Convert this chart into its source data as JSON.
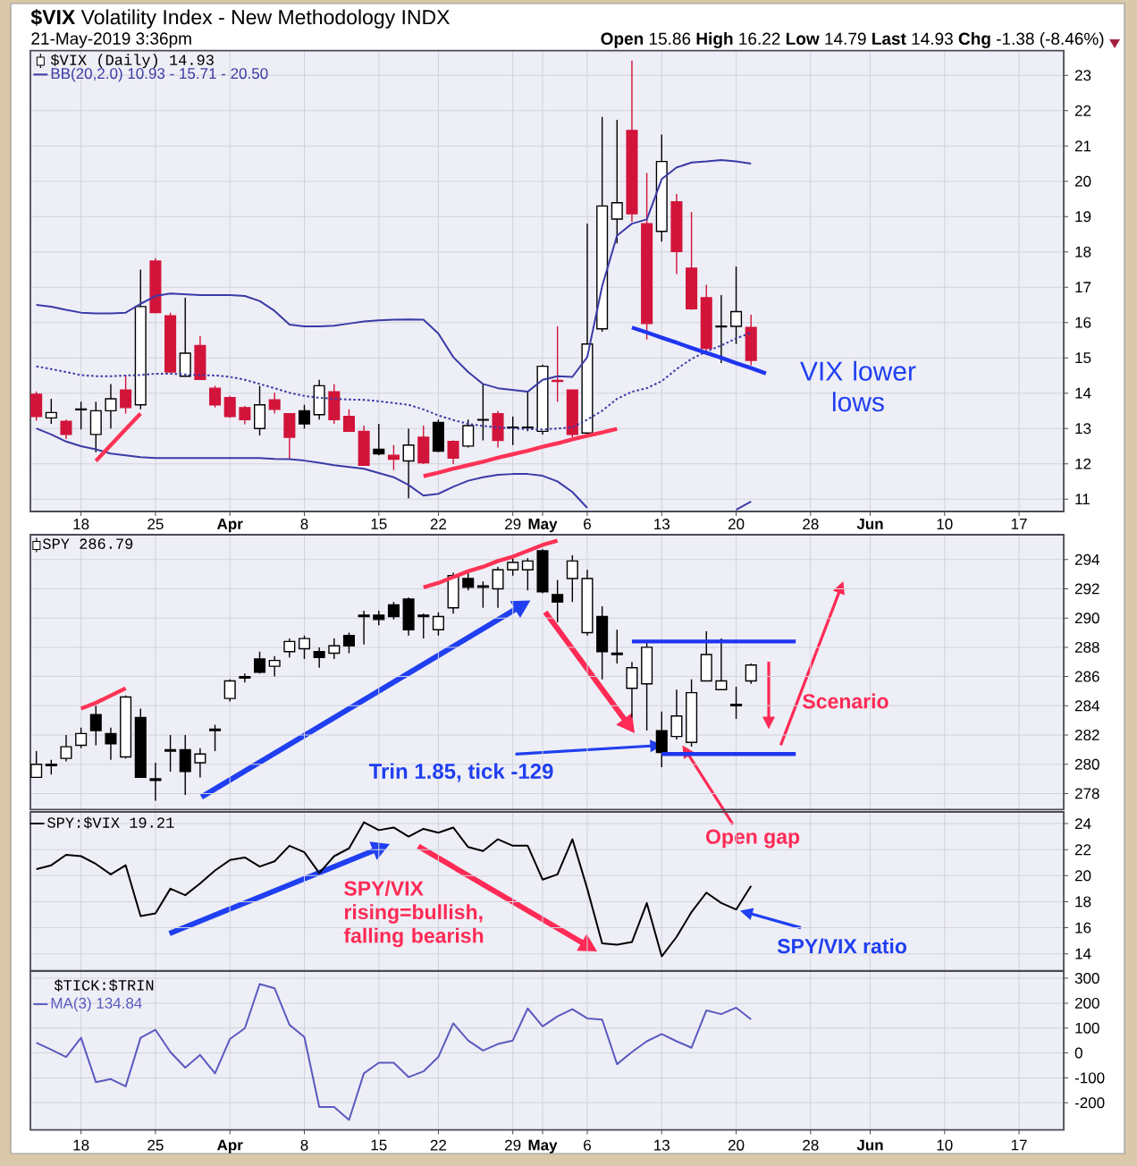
{
  "chart_data": [
    {
      "type": "candlestick",
      "title": "**$VIX** Volatility Index - New Methodology INDX",
      "subtitle": "21-May-2019 3:36pm",
      "annotations": [
        "**Open** 15.86 **High** 16.22 **Low** 14.79 **Last** 14.93 **Chg** -1.38 (-8.46%)",
        "VIX lower lows"
      ],
      "categories": [
        null,
        null,
        null,
        "18",
        null,
        null,
        null,
        null,
        "25",
        null,
        null,
        null,
        null,
        "**Apr**",
        null,
        null,
        null,
        null,
        "8",
        null,
        null,
        null,
        null,
        "15",
        null,
        null,
        null,
        "22",
        null,
        null,
        null,
        null,
        "29",
        null,
        "**May**",
        null,
        null,
        "6",
        null,
        null,
        null,
        null,
        "13",
        null,
        null,
        null,
        null,
        "20",
        null,
        null,
        null,
        null,
        "28",
        null,
        null,
        null,
        "**Jun**",
        null,
        null,
        null,
        null,
        "10",
        null,
        null,
        null,
        null,
        "17",
        null,
        null,
        null
      ],
      "series": [
        {
          "name": "$VIX (Daily) 14.93",
          "type": "candlestick",
          "colors": [
            "#d2143a",
            "#000000",
            "#d2143a",
            "#000000",
            "#000000",
            "#000000",
            "#d2143a",
            "#000000",
            "#d2143a",
            "#d2143a",
            "#000000",
            "#d2143a",
            "#d2143a",
            "#d2143a",
            "#d2143a",
            "#000000",
            "#d2143a",
            "#d2143a",
            "#000000",
            "#000000",
            "#d2143a",
            "#d2143a",
            "#d2143a",
            "#000000",
            "#d2143a",
            "#000000",
            "#d2143a",
            "#000000",
            "#d2143a",
            "#000000",
            "#000000",
            "#d2143a",
            "#000000",
            "#000000",
            "#000000",
            "#d2143a",
            "#d2143a",
            "#000000",
            "#000000",
            "#000000",
            "#d2143a",
            "#d2143a",
            "#000000",
            "#d2143a",
            "#d2143a",
            "#d2143a",
            "#000000",
            "#000000",
            "#d2143a",
            null,
            null,
            null,
            null,
            null,
            null,
            null,
            null,
            null,
            null,
            null,
            null,
            null,
            null,
            null,
            null,
            null,
            null,
            null,
            null,
            null
          ],
          "ohlc": [
            [
              13.97,
              14.05,
              13.22,
              13.34
            ],
            [
              13.3,
              13.84,
              13.13,
              13.45
            ],
            [
              13.2,
              13.25,
              12.7,
              12.83
            ],
            [
              13.53,
              13.76,
              12.97,
              13.55
            ],
            [
              12.83,
              13.76,
              12.33,
              13.5
            ],
            [
              13.5,
              14.26,
              13.0,
              13.84
            ],
            [
              14.09,
              14.51,
              13.42,
              13.59
            ],
            [
              13.67,
              17.5,
              13.54,
              16.45
            ],
            [
              17.74,
              17.82,
              16.28,
              16.28
            ],
            [
              16.19,
              16.28,
              14.6,
              14.6
            ],
            [
              14.48,
              16.7,
              14.48,
              15.13
            ],
            [
              15.35,
              15.61,
              14.39,
              14.39
            ],
            [
              14.14,
              14.21,
              13.59,
              13.67
            ],
            [
              13.87,
              13.92,
              13.3,
              13.34
            ],
            [
              13.59,
              13.64,
              13.12,
              13.25
            ],
            [
              13.0,
              14.21,
              12.8,
              13.67
            ],
            [
              13.81,
              14.01,
              13.42,
              13.54
            ],
            [
              13.42,
              13.42,
              12.13,
              12.75
            ],
            [
              13.5,
              13.67,
              13.0,
              13.13
            ],
            [
              13.39,
              14.38,
              13.25,
              14.21
            ],
            [
              14.04,
              14.26,
              13.13,
              13.25
            ],
            [
              13.34,
              13.54,
              12.92,
              12.92
            ],
            [
              12.92,
              13.08,
              11.96,
              11.96
            ],
            [
              12.41,
              13.13,
              12.24,
              12.28
            ],
            [
              12.24,
              12.53,
              11.82,
              12.13
            ],
            [
              12.08,
              13.0,
              11.02,
              12.53
            ],
            [
              12.75,
              13.08,
              11.99,
              12.03
            ],
            [
              13.17,
              13.25,
              12.33,
              12.36
            ],
            [
              12.63,
              12.66,
              11.99,
              12.16
            ],
            [
              12.5,
              13.25,
              12.46,
              13.08
            ],
            [
              13.24,
              14.26,
              12.66,
              13.25
            ],
            [
              13.42,
              13.5,
              12.46,
              12.66
            ],
            [
              13.02,
              13.34,
              12.53,
              13.04
            ],
            [
              13.02,
              14.04,
              12.92,
              13.04
            ],
            [
              12.92,
              14.81,
              12.83,
              14.76
            ],
            [
              14.36,
              15.89,
              13.76,
              14.33
            ],
            [
              14.09,
              14.09,
              12.75,
              12.83
            ],
            [
              12.87,
              18.8,
              12.8,
              15.39
            ],
            [
              15.82,
              21.82,
              15.74,
              19.3
            ],
            [
              18.93,
              21.74,
              18.24,
              19.39
            ],
            [
              21.44,
              23.42,
              18.85,
              19.08
            ],
            [
              18.8,
              20.23,
              15.52,
              15.97
            ],
            [
              18.58,
              21.32,
              18.29,
              20.56
            ],
            [
              19.42,
              19.64,
              17.37,
              18.01
            ],
            [
              17.54,
              19.13,
              16.36,
              16.39
            ],
            [
              16.7,
              17.07,
              15.18,
              15.27
            ],
            [
              15.88,
              16.78,
              14.85,
              15.9
            ],
            [
              15.89,
              17.59,
              15.39,
              16.31
            ],
            [
              15.86,
              16.22,
              14.79,
              14.93
            ],
            null,
            null,
            null,
            null,
            null,
            null,
            null,
            null,
            null,
            null,
            null,
            null,
            null,
            null,
            null,
            null,
            null,
            null,
            null,
            null,
            null
          ]
        },
        {
          "name": "BB(20,2.0) 10.93 - 15.71 - 20.50",
          "type": "line",
          "color": "#3a3aa8",
          "values": [
            16.5,
            16.45,
            16.36,
            16.28,
            16.26,
            16.26,
            16.28,
            16.53,
            16.75,
            16.82,
            16.8,
            16.78,
            16.78,
            16.78,
            16.75,
            16.61,
            16.33,
            15.94,
            15.89,
            15.89,
            15.91,
            15.97,
            16.03,
            16.06,
            16.08,
            16.09,
            16.08,
            15.69,
            15.02,
            14.6,
            14.26,
            14.14,
            14.09,
            14.04,
            14.38,
            14.48,
            14.46,
            15.02,
            17.03,
            18.46,
            18.8,
            18.92,
            20.06,
            20.39,
            20.53,
            20.56,
            20.6,
            20.56,
            20.5,
            null,
            null,
            null,
            null,
            null,
            null,
            null,
            null,
            null,
            null,
            null,
            null,
            null,
            null,
            null,
            null,
            null,
            null,
            null,
            null,
            null
          ]
        },
        {
          "type": "line",
          "color": "#3a3aa8",
          "line_style": "dotted",
          "values": [
            14.76,
            14.68,
            14.6,
            14.51,
            14.48,
            14.48,
            14.5,
            14.51,
            14.55,
            14.55,
            14.53,
            14.51,
            14.5,
            14.46,
            14.38,
            14.26,
            14.14,
            14.01,
            13.92,
            13.87,
            13.84,
            13.82,
            13.81,
            13.77,
            13.72,
            13.67,
            13.54,
            13.37,
            13.24,
            13.13,
            13.07,
            13.03,
            13.0,
            12.98,
            12.97,
            13.0,
            13.03,
            13.25,
            13.5,
            13.84,
            14.04,
            14.14,
            14.34,
            14.68,
            14.97,
            15.18,
            15.35,
            15.55,
            15.71,
            null,
            null,
            null,
            null,
            null,
            null,
            null,
            null,
            null,
            null,
            null,
            null,
            null,
            null,
            null,
            null,
            null,
            null,
            null,
            null,
            null
          ]
        },
        {
          "type": "line",
          "color": "#3a3aa8",
          "values": [
            13.0,
            12.83,
            12.63,
            12.5,
            12.41,
            12.29,
            12.24,
            12.19,
            12.16,
            12.16,
            12.16,
            12.16,
            12.16,
            12.16,
            12.16,
            12.16,
            12.14,
            12.13,
            12.09,
            12.03,
            11.96,
            11.91,
            11.86,
            11.74,
            11.62,
            11.4,
            11.1,
            11.15,
            11.35,
            11.52,
            11.62,
            11.69,
            11.71,
            11.71,
            11.66,
            11.5,
            11.2,
            10.75,
            null,
            null,
            null,
            null,
            null,
            null,
            null,
            null,
            null,
            10.7,
            10.93,
            null,
            null,
            null,
            null,
            null,
            null,
            null,
            null,
            null,
            null,
            null,
            null,
            null,
            null,
            null,
            null,
            null,
            null,
            null,
            null,
            null
          ]
        },
        {
          "type": "line",
          "color": "#ff3355",
          "values": [
            null,
            null,
            null,
            null,
            12.08,
            12.53,
            12.98,
            13.42,
            null,
            null,
            null,
            null,
            null,
            null,
            null,
            null,
            null,
            null,
            null,
            null,
            null,
            null,
            null,
            null,
            null,
            null,
            null,
            null,
            null,
            null,
            null,
            null,
            null,
            null,
            null,
            null,
            null,
            null,
            null,
            null,
            null,
            null,
            null,
            null,
            null,
            null,
            null,
            null,
            null,
            null,
            null,
            null,
            null,
            null,
            null,
            null,
            null,
            null,
            null,
            null,
            null,
            null,
            null,
            null,
            null,
            null,
            null,
            null,
            null,
            null
          ]
        },
        {
          "type": "line",
          "color": "#ff3355",
          "values": [
            null,
            null,
            null,
            null,
            null,
            null,
            null,
            null,
            null,
            null,
            null,
            null,
            null,
            null,
            null,
            null,
            null,
            null,
            null,
            null,
            null,
            null,
            null,
            null,
            null,
            null,
            11.65,
            11.75,
            11.86,
            11.96,
            12.06,
            12.17,
            12.27,
            12.37,
            12.48,
            12.58,
            12.69,
            12.79,
            12.89,
            12.99,
            null,
            null,
            null,
            null,
            null,
            null,
            null,
            null,
            null,
            null,
            null,
            null,
            null,
            null,
            null,
            null,
            null,
            null,
            null,
            null,
            null,
            null,
            null,
            null,
            null,
            null,
            null,
            null,
            null,
            null
          ]
        },
        {
          "type": "line",
          "color": "#1f35f0",
          "values": [
            null,
            null,
            null,
            null,
            null,
            null,
            null,
            null,
            null,
            null,
            null,
            null,
            null,
            null,
            null,
            null,
            null,
            null,
            null,
            null,
            null,
            null,
            null,
            null,
            null,
            null,
            null,
            null,
            null,
            null,
            null,
            null,
            null,
            null,
            null,
            null,
            null,
            null,
            null,
            null,
            15.86,
            15.72,
            15.57,
            15.43,
            15.28,
            15.14,
            15.0,
            14.85,
            14.71,
            14.56,
            null,
            null,
            null,
            null,
            null,
            null,
            null,
            null,
            null,
            null,
            null,
            null,
            null,
            null,
            null,
            null,
            null,
            null,
            null,
            null
          ]
        }
      ],
      "ylim": [
        10.65,
        23.7
      ],
      "yticks": [
        11,
        12,
        13,
        14,
        15,
        16,
        17,
        18,
        19,
        20,
        21,
        22,
        23
      ],
      "grid": true,
      "legend": "top left"
    },
    {
      "type": "candlestick",
      "annotations": [
        "Trin 1.85, tick -129",
        "Scenario",
        "Open gap"
      ],
      "categories": [
        null,
        null,
        null,
        null,
        null,
        null,
        null,
        null,
        null,
        null,
        null,
        null,
        null,
        null,
        null,
        null,
        null,
        null,
        null,
        null,
        null,
        null,
        null,
        null,
        null,
        null,
        null,
        null,
        null,
        null,
        null,
        null,
        null,
        null,
        null,
        null,
        null,
        null,
        null,
        null,
        null,
        null,
        null,
        null,
        null,
        null,
        null,
        null,
        null,
        null,
        null,
        null,
        null,
        null,
        null,
        null,
        null,
        null,
        null,
        null,
        null,
        null,
        null,
        null,
        null,
        null,
        null,
        null,
        null,
        null
      ],
      "series": [
        {
          "name": "SPY 286.79",
          "type": "candlestick",
          "color": "#000000",
          "ohlc": [
            [
              279.1,
              280.9,
              279.1,
              280.0
            ],
            [
              280.0,
              280.3,
              279.3,
              279.9
            ],
            [
              280.4,
              282.0,
              280.2,
              281.2
            ],
            [
              281.3,
              282.5,
              281.1,
              282.1
            ],
            [
              283.4,
              284.0,
              281.3,
              282.3
            ],
            [
              282.1,
              282.5,
              280.3,
              281.4
            ],
            [
              280.5,
              284.7,
              280.4,
              284.6
            ],
            [
              283.2,
              283.8,
              279.1,
              279.1
            ],
            [
              279.0,
              280.1,
              277.5,
              278.9
            ],
            [
              281.0,
              282.0,
              279.5,
              280.9
            ],
            [
              281.0,
              282.0,
              277.9,
              279.5
            ],
            [
              280.1,
              281.1,
              279.1,
              280.7
            ],
            [
              282.4,
              282.7,
              280.9,
              282.3
            ],
            [
              284.5,
              285.8,
              284.3,
              285.7
            ],
            [
              286.0,
              286.2,
              285.6,
              285.9
            ],
            [
              287.2,
              287.7,
              286.2,
              286.3
            ],
            [
              286.7,
              287.4,
              286.0,
              287.1
            ],
            [
              287.7,
              288.6,
              287.3,
              288.4
            ],
            [
              287.9,
              288.8,
              287.2,
              288.6
            ],
            [
              287.7,
              288.0,
              286.6,
              287.3
            ],
            [
              287.6,
              288.6,
              287.2,
              288.1
            ],
            [
              288.8,
              289.0,
              287.6,
              288.1
            ],
            [
              290.2,
              290.5,
              288.2,
              290.1
            ],
            [
              290.2,
              290.5,
              289.5,
              289.9
            ],
            [
              290.9,
              291.1,
              289.9,
              290.1
            ],
            [
              291.3,
              291.4,
              288.8,
              289.2
            ],
            [
              290.2,
              290.3,
              288.6,
              290.1
            ],
            [
              289.2,
              290.4,
              288.8,
              290.1
            ],
            [
              290.7,
              293.1,
              290.3,
              292.9
            ],
            [
              292.7,
              293.1,
              291.9,
              292.1
            ],
            [
              292.2,
              292.5,
              290.7,
              292.1
            ],
            [
              292.0,
              293.5,
              290.7,
              293.3
            ],
            [
              293.3,
              294.1,
              292.9,
              293.8
            ],
            [
              293.3,
              294.1,
              291.9,
              293.9
            ],
            [
              294.6,
              294.7,
              291.7,
              291.8
            ],
            [
              291.6,
              292.6,
              289.7,
              291.1
            ],
            [
              292.7,
              294.3,
              291.1,
              293.9
            ],
            [
              289.0,
              293.3,
              288.8,
              292.7
            ],
            [
              290.1,
              290.8,
              285.8,
              287.7
            ],
            [
              287.6,
              289.2,
              286.9,
              287.5
            ],
            [
              285.2,
              287.0,
              283.2,
              286.6
            ],
            [
              285.5,
              288.4,
              282.3,
              288.0
            ],
            [
              282.3,
              283.6,
              279.8,
              280.8
            ],
            [
              281.9,
              285.1,
              281.7,
              283.3
            ],
            [
              281.5,
              285.8,
              281.2,
              284.9
            ],
            [
              285.7,
              289.1,
              285.7,
              287.5
            ],
            [
              285.1,
              288.6,
              285.1,
              285.7
            ],
            [
              284.1,
              285.3,
              283.1,
              284.0
            ],
            [
              285.7,
              286.9,
              285.5,
              286.79
            ],
            null,
            null,
            null,
            null,
            null,
            null,
            null,
            null,
            null,
            null,
            null,
            null,
            null,
            null,
            null,
            null,
            null,
            null,
            null,
            null,
            null
          ]
        },
        {
          "type": "line",
          "color": "#ff3355",
          "values": [
            null,
            null,
            null,
            283.8,
            284.2,
            284.7,
            285.2,
            null,
            null,
            null,
            null,
            null,
            null,
            null,
            null,
            null,
            null,
            null,
            null,
            null,
            null,
            null,
            null,
            null,
            null,
            null,
            null,
            null,
            null,
            null,
            null,
            null,
            null,
            null,
            null,
            null,
            null,
            null,
            null,
            null,
            null,
            null,
            null,
            null,
            null,
            null,
            null,
            null,
            null,
            null,
            null,
            null,
            null,
            null,
            null,
            null,
            null,
            null,
            null,
            null,
            null,
            null,
            null,
            null,
            null,
            null,
            null,
            null,
            null,
            null
          ]
        },
        {
          "type": "line",
          "color": "#ff3355",
          "values": [
            null,
            null,
            null,
            null,
            null,
            null,
            null,
            null,
            null,
            null,
            null,
            null,
            null,
            null,
            null,
            null,
            null,
            null,
            null,
            null,
            null,
            null,
            null,
            null,
            null,
            null,
            292.1,
            292.4,
            292.8,
            293.2,
            293.5,
            293.9,
            294.2,
            294.6,
            295.0,
            295.3,
            null,
            null,
            null,
            null,
            null,
            null,
            null,
            null,
            null,
            null,
            null,
            null,
            null,
            null,
            null,
            null,
            null,
            null,
            null,
            null,
            null,
            null,
            null,
            null,
            null,
            null,
            null,
            null,
            null,
            null,
            null,
            null,
            null,
            null
          ]
        },
        {
          "type": "line",
          "color": "#1f35f0",
          "values": [
            null,
            null,
            null,
            null,
            null,
            null,
            null,
            null,
            null,
            null,
            null,
            null,
            null,
            null,
            null,
            null,
            null,
            null,
            null,
            null,
            null,
            null,
            null,
            null,
            null,
            null,
            null,
            null,
            null,
            null,
            null,
            null,
            null,
            null,
            null,
            null,
            null,
            null,
            null,
            null,
            288.4,
            288.4,
            288.4,
            288.4,
            288.4,
            288.4,
            288.4,
            288.4,
            288.4,
            288.4,
            288.4,
            288.4,
            null,
            null,
            null,
            null,
            null,
            null,
            null,
            null,
            null,
            null,
            null,
            null,
            null,
            null,
            null,
            null,
            null,
            null
          ]
        },
        {
          "type": "line",
          "color": "#1f35f0",
          "values": [
            null,
            null,
            null,
            null,
            null,
            null,
            null,
            null,
            null,
            null,
            null,
            null,
            null,
            null,
            null,
            null,
            null,
            null,
            null,
            null,
            null,
            null,
            null,
            null,
            null,
            null,
            null,
            null,
            null,
            null,
            null,
            null,
            null,
            null,
            null,
            null,
            null,
            null,
            null,
            null,
            null,
            null,
            280.7,
            280.7,
            280.7,
            280.7,
            280.7,
            280.7,
            280.7,
            280.7,
            280.7,
            280.7,
            null,
            null,
            null,
            null,
            null,
            null,
            null,
            null,
            null,
            null,
            null,
            null,
            null,
            null,
            null,
            null,
            null,
            null
          ]
        }
      ],
      "ylim": [
        276.9,
        295.7
      ],
      "yticks": [
        278,
        280,
        282,
        284,
        286,
        288,
        290,
        292,
        294
      ],
      "grid": true,
      "legend": "top left",
      "tick_labels": "y"
    },
    {
      "type": "line",
      "annotations": [
        "SPY/VIX rising=bullish, falling bearish",
        "SPY/VIX ratio"
      ],
      "categories": [
        null,
        null,
        null,
        null,
        null,
        null,
        null,
        null,
        null,
        null,
        null,
        null,
        null,
        null,
        null,
        null,
        null,
        null,
        null,
        null,
        null,
        null,
        null,
        null,
        null,
        null,
        null,
        null,
        null,
        null,
        null,
        null,
        null,
        null,
        null,
        null,
        null,
        null,
        null,
        null,
        null,
        null,
        null,
        null,
        null,
        null,
        null,
        null,
        null,
        null,
        null,
        null,
        null,
        null,
        null,
        null,
        null,
        null,
        null,
        null,
        null,
        null,
        null,
        null,
        null,
        null,
        null,
        null,
        null,
        null
      ],
      "series": [
        {
          "name": "SPY:$VIX 19.21",
          "color": "#000000",
          "values": [
            20.5,
            20.8,
            21.6,
            21.5,
            20.9,
            20.1,
            20.8,
            16.9,
            17.1,
            19.0,
            18.5,
            19.4,
            20.4,
            21.2,
            21.4,
            20.7,
            21.1,
            22.3,
            21.8,
            20.2,
            21.5,
            22.1,
            24.1,
            23.5,
            23.7,
            23.0,
            23.6,
            23.3,
            23.7,
            22.2,
            21.9,
            22.8,
            22.3,
            22.3,
            19.7,
            20.1,
            22.8,
            19.0,
            14.8,
            14.7,
            14.9,
            17.9,
            13.8,
            15.3,
            17.2,
            18.7,
            17.9,
            17.4,
            19.21,
            null,
            null,
            null,
            null,
            null,
            null,
            null,
            null,
            null,
            null,
            null,
            null,
            null,
            null,
            null,
            null,
            null,
            null,
            null,
            null,
            null
          ]
        }
      ],
      "ylim": [
        12.7,
        24.9
      ],
      "yticks": [
        14,
        16,
        18,
        20,
        22,
        24
      ],
      "grid": true,
      "legend": "top left",
      "tick_labels": "y"
    },
    {
      "type": "line",
      "title": "$TICK:$TRIN",
      "categories": [
        null,
        null,
        null,
        "18",
        null,
        null,
        null,
        null,
        "25",
        null,
        null,
        null,
        null,
        "**Apr**",
        null,
        null,
        null,
        null,
        "8",
        null,
        null,
        null,
        null,
        "15",
        null,
        null,
        null,
        "22",
        null,
        null,
        null,
        null,
        "29",
        null,
        "**May**",
        null,
        null,
        "6",
        null,
        null,
        null,
        null,
        "13",
        null,
        null,
        null,
        null,
        "20",
        null,
        null,
        null,
        null,
        "28",
        null,
        null,
        null,
        "**Jun**",
        null,
        null,
        null,
        null,
        "10",
        null,
        null,
        null,
        null,
        "17",
        null,
        null,
        null
      ],
      "series": [
        {
          "name": "MA(3) 134.84",
          "color": "#5a5ac0",
          "values": [
            41,
            13,
            -16,
            61,
            -117,
            -105,
            -134,
            61,
            93,
            4,
            -59,
            -8,
            -82,
            56,
            99,
            277,
            260,
            113,
            64,
            -217,
            -217,
            -269,
            -82,
            -39,
            -39,
            -97,
            -74,
            -16,
            119,
            50,
            10,
            36,
            50,
            179,
            107,
            147,
            176,
            139,
            134,
            -45,
            4,
            47,
            76,
            47,
            21,
            171,
            156,
            182,
            134.84,
            null,
            null,
            null,
            null,
            null,
            null,
            null,
            null,
            null,
            null,
            null,
            null,
            null,
            null,
            null,
            null,
            null,
            null,
            null,
            null,
            null
          ]
        }
      ],
      "ylim": [
        -309,
        329
      ],
      "yticks": [
        -200,
        -100,
        0,
        100,
        200,
        300
      ],
      "grid": true,
      "legend": "top left"
    }
  ]
}
